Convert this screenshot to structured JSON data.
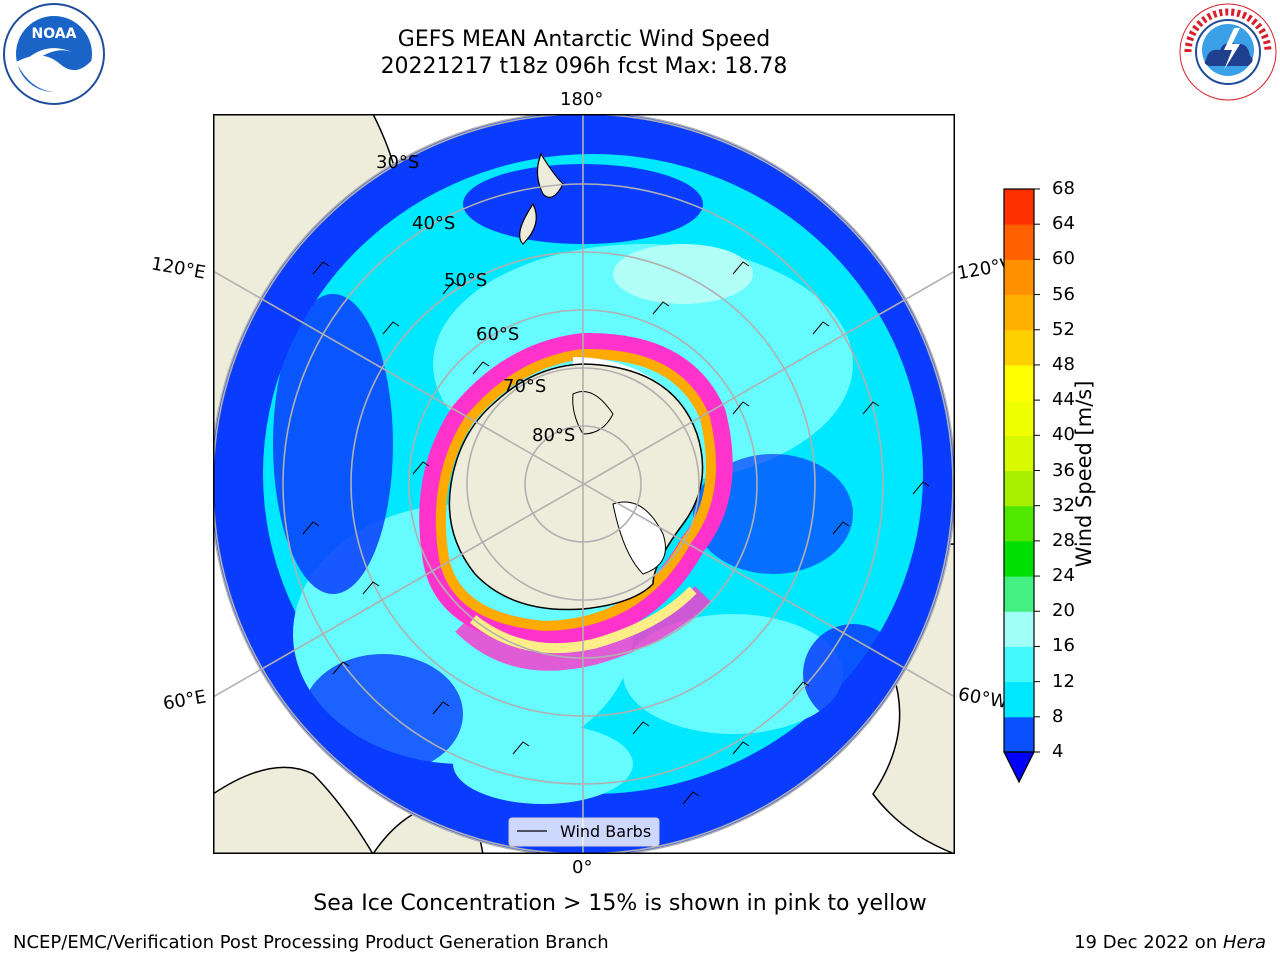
{
  "title": {
    "line1": "GEFS MEAN Antarctic Wind Speed",
    "line2": "20221217 t18z 096h fcst   Max: 18.78"
  },
  "logos": {
    "left_icon": "noaa-logo-icon",
    "right_icon": "nws-logo-icon"
  },
  "map": {
    "longitude_labels": {
      "top": "180°",
      "bottom": "0°",
      "upper_left": "120°E",
      "upper_right": "120°W",
      "lower_left": "60°E",
      "lower_right": "60°W"
    },
    "latitude_labels": [
      "30°S",
      "40°S",
      "50°S",
      "60°S",
      "70°S",
      "80°S"
    ],
    "legend": {
      "label": "Wind Barbs"
    },
    "colors": {
      "land": "#eeecdb",
      "ocean_4_8": "#0a3cff",
      "ocean_8_12": "#00e8ff",
      "ocean_12_16": "#66fbff",
      "ocean_16_20": "#b2fff7",
      "sea_ice_low": "#ff33cc",
      "sea_ice_mid": "#ffaa00",
      "sea_ice_high": "#ffee88",
      "grid": "#b0b0b0"
    }
  },
  "colorbar": {
    "label": "Wind Speed [m/s]",
    "ticks": [
      "4",
      "8",
      "12",
      "16",
      "20",
      "24",
      "28",
      "32",
      "36",
      "40",
      "44",
      "48",
      "52",
      "56",
      "60",
      "64",
      "68"
    ],
    "colors": [
      "#0a50ff",
      "#00e8ff",
      "#44f8ff",
      "#a0fff8",
      "#44f080",
      "#00e000",
      "#50e800",
      "#a8f000",
      "#d8fa00",
      "#f0ff00",
      "#ffff00",
      "#ffd000",
      "#ffb000",
      "#ff9000",
      "#ff6000",
      "#ff3000"
    ],
    "extend_color": "#0000ff"
  },
  "caption": "Sea Ice Concentration > 15% is shown in pink to yellow",
  "footer": {
    "left": "NCEP/EMC/Verification Post Processing Product Generation Branch",
    "right_date": "19 Dec 2022 on ",
    "right_machine": "Hera"
  }
}
